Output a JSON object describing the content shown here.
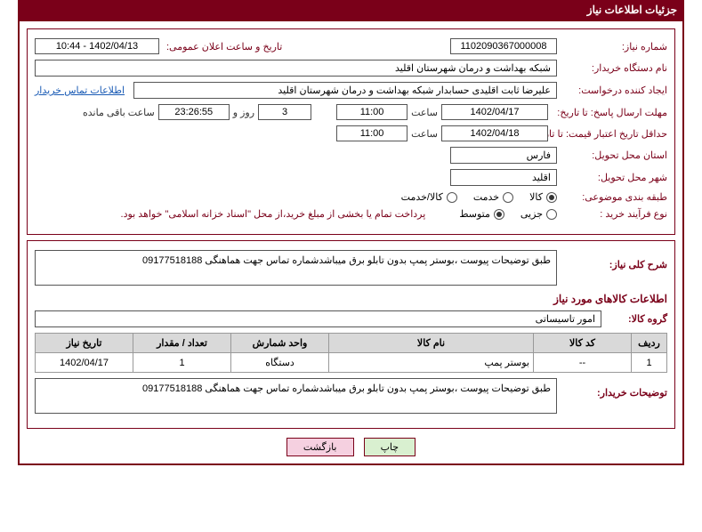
{
  "title": "جزئیات اطلاعات نیاز",
  "colors": {
    "primary": "#7a0019",
    "link": "#1a5bb5",
    "thBg": "#d9d9d9",
    "btnPrint": "#d9f0d0",
    "btnBack": "#f5d0e0"
  },
  "fields": {
    "needNoLabel": "شماره نیاز:",
    "needNo": "1102090367000008",
    "announceLabel": "تاریخ و ساعت اعلان عمومی:",
    "announce": "1402/04/13 - 10:44",
    "buyerOrgLabel": "نام دستگاه خریدار:",
    "buyerOrg": "شبکه بهداشت و درمان شهرستان اقلید",
    "requesterLabel": "ایجاد کننده درخواست:",
    "requester": "علیرضا ثابت اقلیدی حسابدار شبکه بهداشت و درمان شهرستان اقلید",
    "contactLink": "اطلاعات تماس خریدار",
    "deadlineLabel": "مهلت ارسال پاسخ: تا تاریخ:",
    "deadlineDate": "1402/04/17",
    "timeLabel": "ساعت",
    "deadlineTime": "11:00",
    "daysVal": "3",
    "daysSuffix": "روز و",
    "countdown": "23:26:55",
    "remaining": "ساعت باقی مانده",
    "validityLabel": "حداقل تاریخ اعتبار قیمت: تا تاریخ:",
    "validityDate": "1402/04/18",
    "validityTime": "11:00",
    "provinceLabel": "استان محل تحویل:",
    "province": "فارس",
    "cityLabel": "شهر محل تحویل:",
    "city": "اقلید",
    "subjectCatLabel": "طبقه بندی موضوعی:",
    "processLabel": "نوع فرآیند خرید :",
    "paymentNote": "پرداخت تمام یا بخشی از مبلغ خرید،از محل \"اسناد خزانه اسلامی\" خواهد بود."
  },
  "radios": {
    "subject": [
      {
        "label": "کالا",
        "checked": true
      },
      {
        "label": "خدمت",
        "checked": false
      },
      {
        "label": "کالا/خدمت",
        "checked": false
      }
    ],
    "process": [
      {
        "label": "جزیی",
        "checked": false
      },
      {
        "label": "متوسط",
        "checked": true
      }
    ]
  },
  "desc": {
    "headingLabel": "شرح کلی نیاز:",
    "text": "طبق  توضیحات پیوست ،بوستر پمپ بدون تابلو برق میباشدشماره تماس جهت هماهنگی 09177518188"
  },
  "goodsHeading": "اطلاعات کالاهای مورد نیاز",
  "group": {
    "label": "گروه کالا:",
    "value": "امور تاسیساتی"
  },
  "table": {
    "headers": [
      "ردیف",
      "کد کالا",
      "نام کالا",
      "واحد شمارش",
      "تعداد / مقدار",
      "تاریخ نیاز"
    ],
    "rows": [
      {
        "idx": "1",
        "code": "--",
        "name": "بوستر پمپ",
        "unit": "دستگاه",
        "qty": "1",
        "date": "1402/04/17"
      }
    ]
  },
  "buyerNote": {
    "label": "توضیحات خریدار:",
    "text": "طبق  توضیحات پیوست ،بوستر پمپ بدون تابلو برق میباشدشماره تماس جهت هماهنگی 09177518188"
  },
  "buttons": {
    "print": "چاپ",
    "back": "بازگشت"
  }
}
